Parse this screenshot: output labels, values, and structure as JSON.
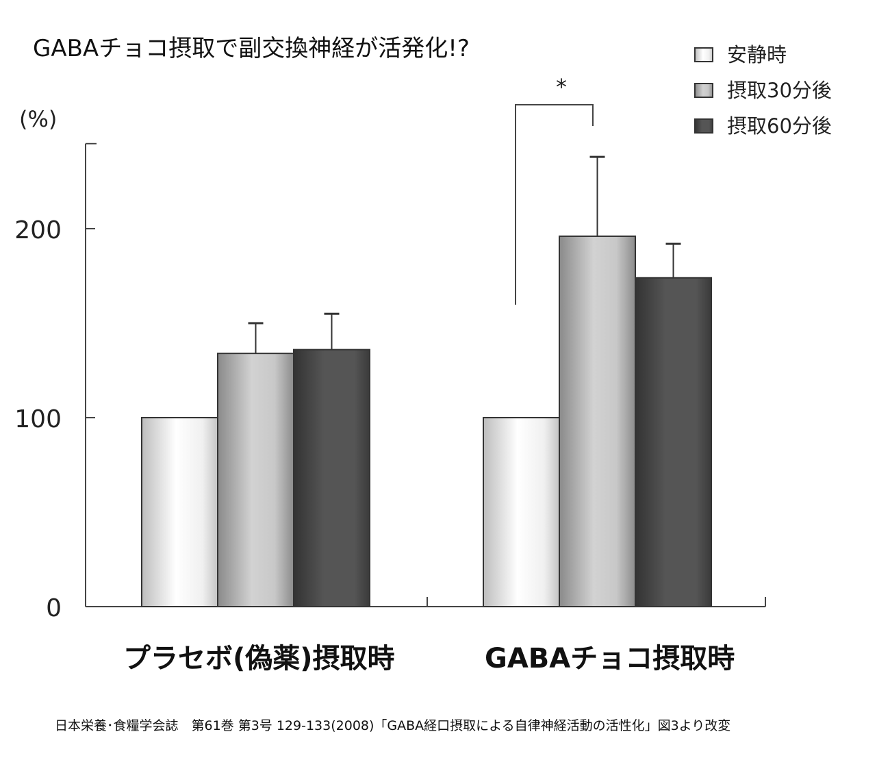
{
  "chart_data": {
    "type": "bar",
    "title": "GABAチョコ摂取で副交換神経が活発化!?",
    "ylabel": "(%)",
    "xlabel": "",
    "ylim": [
      0,
      245
    ],
    "yticks": [
      0,
      100,
      200
    ],
    "categories": [
      "プラセボ(偽薬)摂取時",
      "GABAチョコ摂取時"
    ],
    "series": [
      {
        "name": "安静時",
        "values": [
          100,
          100
        ],
        "errors": [
          null,
          null
        ],
        "color": "#eeeeee"
      },
      {
        "name": "摂取30分後",
        "values": [
          134,
          196
        ],
        "errors": [
          16,
          42
        ],
        "color": "#bbbbbb"
      },
      {
        "name": "摂取60分後",
        "values": [
          136,
          174
        ],
        "errors": [
          19,
          18
        ],
        "color": "#444444"
      }
    ],
    "annotation": {
      "text": "*",
      "between": "GABAチョコ摂取時: 安静時 vs 摂取30分後"
    },
    "legend_position": "top-right",
    "grid": false,
    "source": "日本栄養･食糧学会誌　第61巻 第3号 129-133(2008)「GABA経口摂取による自律神経活動の活性化」図3より改変"
  }
}
